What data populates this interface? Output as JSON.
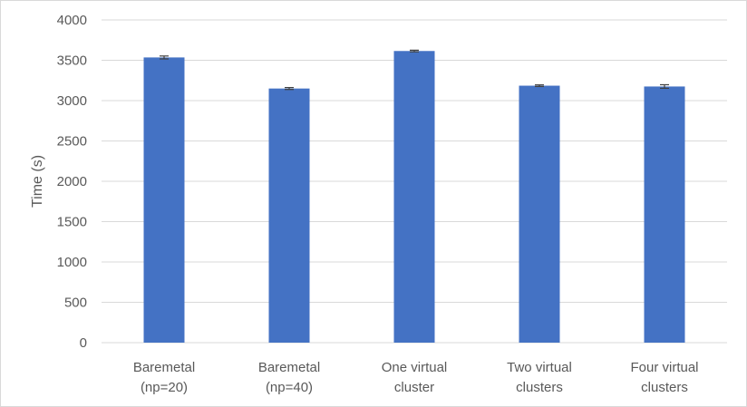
{
  "chart_data": {
    "type": "bar",
    "categories": [
      [
        "Baremetal",
        "(np=20)"
      ],
      [
        "Baremetal",
        "(np=40)"
      ],
      [
        "One virtual",
        "cluster"
      ],
      [
        "Two virtual",
        "clusters"
      ],
      [
        "Four virtual",
        "clusters"
      ]
    ],
    "values": [
      3535,
      3150,
      3615,
      3185,
      3175
    ],
    "errors": [
      18,
      12,
      10,
      10,
      22
    ],
    "title": "",
    "xlabel": "",
    "ylabel": "Time (s)",
    "ylim": [
      0,
      4000
    ],
    "yticks": [
      0,
      500,
      1000,
      1500,
      2000,
      2500,
      3000,
      3500,
      4000
    ],
    "grid": true,
    "bar_color": "#4472c4",
    "error_color": "#404040",
    "grid_color": "#d9d9d9"
  }
}
